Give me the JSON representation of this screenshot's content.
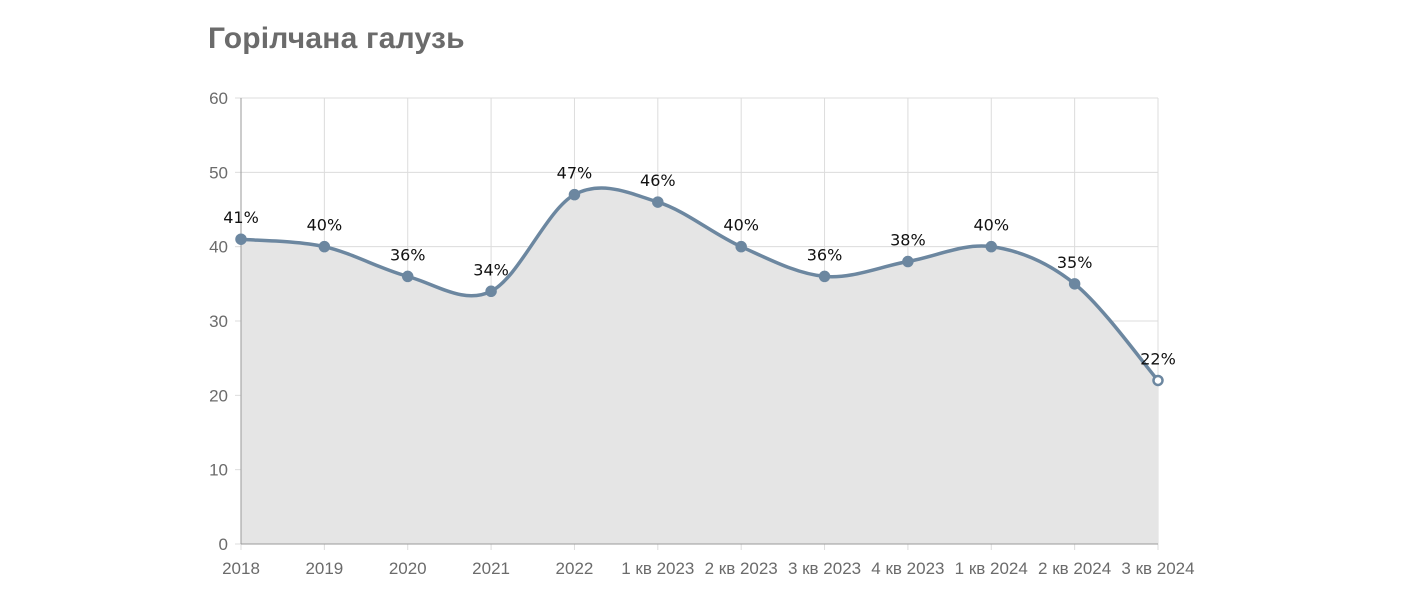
{
  "chart_data": {
    "type": "area",
    "title": "Горілчана галузь",
    "categories": [
      "2018",
      "2019",
      "2020",
      "2021",
      "2022",
      "1 кв 2023",
      "2 кв 2023",
      "3 кв 2023",
      "4 кв 2023",
      "1 кв 2024",
      "2 кв 2024",
      "3 кв 2024"
    ],
    "values": [
      41,
      40,
      36,
      34,
      47,
      46,
      40,
      36,
      38,
      40,
      35,
      22
    ],
    "data_labels": [
      "41%",
      "40%",
      "36%",
      "34%",
      "47%",
      "46%",
      "40%",
      "36%",
      "38%",
      "40%",
      "35%",
      "22%"
    ],
    "y_ticks": [
      "0",
      "10",
      "20",
      "30",
      "40",
      "50",
      "60"
    ],
    "ylim": [
      0,
      60
    ],
    "grid": true,
    "colors": {
      "line": "#6c87a0",
      "fill": "#e5e5e5",
      "grid": "#dcdcdc",
      "axis": "#9a9a9a"
    }
  }
}
